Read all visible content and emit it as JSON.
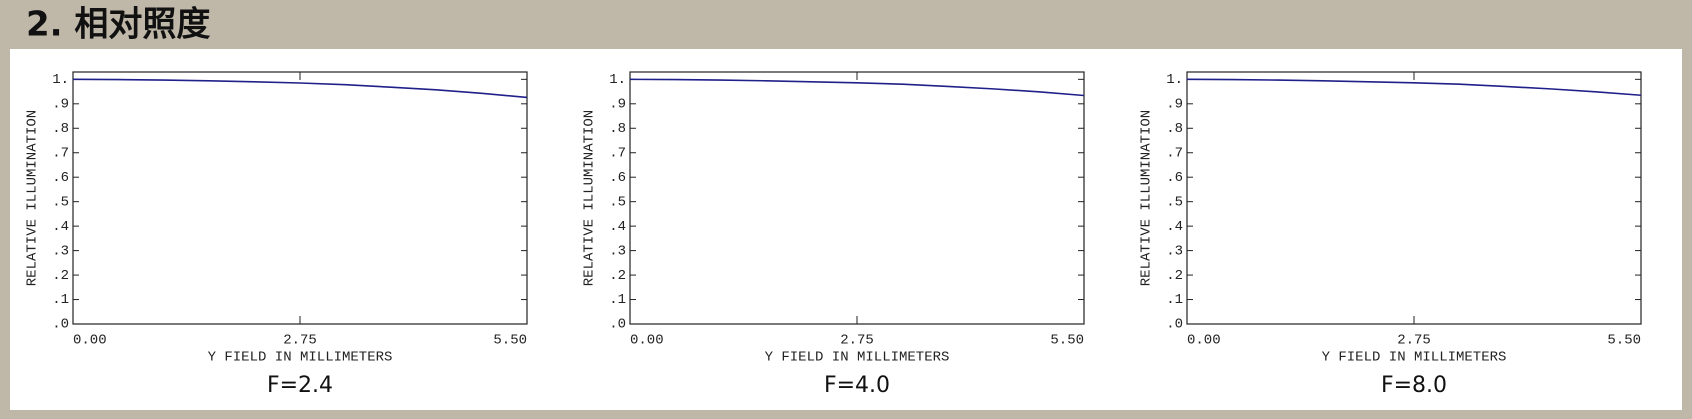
{
  "header": {
    "title": "2. 相对照度"
  },
  "chart_data": [
    {
      "type": "line",
      "caption": "F=2.4",
      "xlabel": "Y FIELD IN MILLIMETERS",
      "ylabel": "RELATIVE ILLUMINATION",
      "x": [
        0,
        0.55,
        1.1,
        1.65,
        2.2,
        2.75,
        3.3,
        3.85,
        4.4,
        4.95,
        5.5
      ],
      "values": [
        1,
        0.999,
        0.997,
        0.994,
        0.99,
        0.985,
        0.978,
        0.968,
        0.957,
        0.943,
        0.926
      ],
      "color": "#20208a",
      "xlim": [
        0,
        5.5
      ],
      "ylim": [
        0,
        1.03
      ],
      "xticks": [
        {
          "value": 0,
          "label": "0.00"
        },
        {
          "value": 2.75,
          "label": "2.75"
        },
        {
          "value": 5.5,
          "label": "5.50"
        }
      ],
      "yticks": [
        {
          "value": 0,
          "label": ".0"
        },
        {
          "value": 0.1,
          "label": ".1"
        },
        {
          "value": 0.2,
          "label": ".2"
        },
        {
          "value": 0.3,
          "label": ".3"
        },
        {
          "value": 0.4,
          "label": ".4"
        },
        {
          "value": 0.5,
          "label": ".5"
        },
        {
          "value": 0.6,
          "label": ".6"
        },
        {
          "value": 0.7,
          "label": ".7"
        },
        {
          "value": 0.8,
          "label": ".8"
        },
        {
          "value": 0.9,
          "label": ".9"
        },
        {
          "value": 1,
          "label": "1."
        }
      ]
    },
    {
      "type": "line",
      "caption": "F=4.0",
      "xlabel": "Y FIELD IN MILLIMETERS",
      "ylabel": "RELATIVE ILLUMINATION",
      "x": [
        0,
        0.55,
        1.1,
        1.65,
        2.2,
        2.75,
        3.3,
        3.85,
        4.4,
        4.95,
        5.5
      ],
      "values": [
        1,
        0.999,
        0.997,
        0.994,
        0.99,
        0.986,
        0.98,
        0.971,
        0.961,
        0.949,
        0.934
      ],
      "color": "#20208a",
      "xlim": [
        0,
        5.5
      ],
      "ylim": [
        0,
        1.03
      ],
      "xticks": [
        {
          "value": 0,
          "label": "0.00"
        },
        {
          "value": 2.75,
          "label": "2.75"
        },
        {
          "value": 5.5,
          "label": "5.50"
        }
      ],
      "yticks": [
        {
          "value": 0,
          "label": ".0"
        },
        {
          "value": 0.1,
          "label": ".1"
        },
        {
          "value": 0.2,
          "label": ".2"
        },
        {
          "value": 0.3,
          "label": ".3"
        },
        {
          "value": 0.4,
          "label": ".4"
        },
        {
          "value": 0.5,
          "label": ".5"
        },
        {
          "value": 0.6,
          "label": ".6"
        },
        {
          "value": 0.7,
          "label": ".7"
        },
        {
          "value": 0.8,
          "label": ".8"
        },
        {
          "value": 0.9,
          "label": ".9"
        },
        {
          "value": 1,
          "label": "1."
        }
      ]
    },
    {
      "type": "line",
      "caption": "F=8.0",
      "xlabel": "Y FIELD IN MILLIMETERS",
      "ylabel": "RELATIVE ILLUMINATION",
      "x": [
        0,
        0.55,
        1.1,
        1.65,
        2.2,
        2.75,
        3.3,
        3.85,
        4.4,
        4.95,
        5.5
      ],
      "values": [
        1,
        0.999,
        0.997,
        0.994,
        0.99,
        0.986,
        0.98,
        0.971,
        0.961,
        0.949,
        0.935
      ],
      "color": "#20208a",
      "xlim": [
        0,
        5.5
      ],
      "ylim": [
        0,
        1.03
      ],
      "xticks": [
        {
          "value": 0,
          "label": "0.00"
        },
        {
          "value": 2.75,
          "label": "2.75"
        },
        {
          "value": 5.5,
          "label": "5.50"
        }
      ],
      "yticks": [
        {
          "value": 0,
          "label": ".0"
        },
        {
          "value": 0.1,
          "label": ".1"
        },
        {
          "value": 0.2,
          "label": ".2"
        },
        {
          "value": 0.3,
          "label": ".3"
        },
        {
          "value": 0.4,
          "label": ".4"
        },
        {
          "value": 0.5,
          "label": ".5"
        },
        {
          "value": 0.6,
          "label": ".6"
        },
        {
          "value": 0.7,
          "label": ".7"
        },
        {
          "value": 0.8,
          "label": ".8"
        },
        {
          "value": 0.9,
          "label": ".9"
        },
        {
          "value": 1,
          "label": "1."
        }
      ]
    }
  ]
}
